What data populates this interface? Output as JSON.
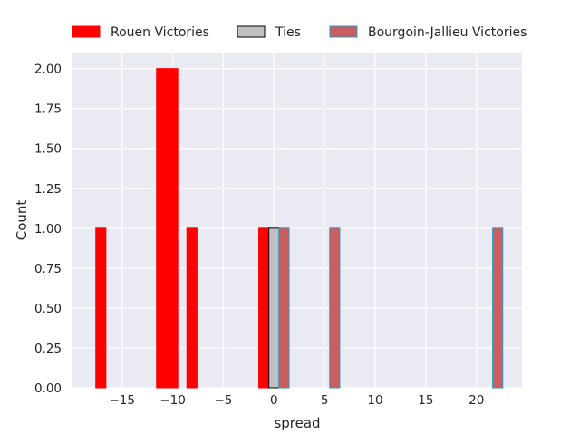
{
  "chart_data": {
    "type": "bar",
    "xlabel": "spread",
    "ylabel": "Count",
    "xlim": [
      -19.9,
      24.5
    ],
    "ylim": [
      0,
      2.1
    ],
    "x_ticks": [
      -15,
      -10,
      -5,
      0,
      5,
      10,
      15,
      20
    ],
    "x_tick_labels": [
      "−15",
      "−10",
      "−5",
      "0",
      "5",
      "10",
      "15",
      "20"
    ],
    "y_ticks": [
      0,
      0.25,
      0.5,
      0.75,
      1.0,
      1.25,
      1.5,
      1.75,
      2.0
    ],
    "y_tick_labels": [
      "0.00",
      "0.25",
      "0.50",
      "0.75",
      "1.00",
      "1.25",
      "1.50",
      "1.75",
      "2.00"
    ],
    "grid": true,
    "legend_position": "top",
    "series": [
      {
        "name": "Rouen Victories",
        "color": "#ff0000",
        "edge_color": "#ff0000",
        "bars": [
          {
            "x0": -17.6,
            "x1": -16.6,
            "count": 1
          },
          {
            "x0": -11.6,
            "x1": -9.5,
            "count": 2
          },
          {
            "x0": -8.6,
            "x1": -7.6,
            "count": 1
          },
          {
            "x0": -1.5,
            "x1": -0.5,
            "count": 1
          }
        ]
      },
      {
        "name": "Ties",
        "color": "#c0c0c0",
        "edge_color": "#000000",
        "bars": [
          {
            "x0": -0.5,
            "x1": 0.5,
            "count": 1
          }
        ]
      },
      {
        "name": "Bourgoin-Jallieu Victories",
        "color": "#cd5c5c",
        "edge_color": "#1f9fd0",
        "bars": [
          {
            "x0": 0.5,
            "x1": 1.5,
            "count": 1
          },
          {
            "x0": 5.5,
            "x1": 6.5,
            "count": 1
          },
          {
            "x0": 21.6,
            "x1": 22.6,
            "count": 1
          }
        ]
      }
    ]
  }
}
